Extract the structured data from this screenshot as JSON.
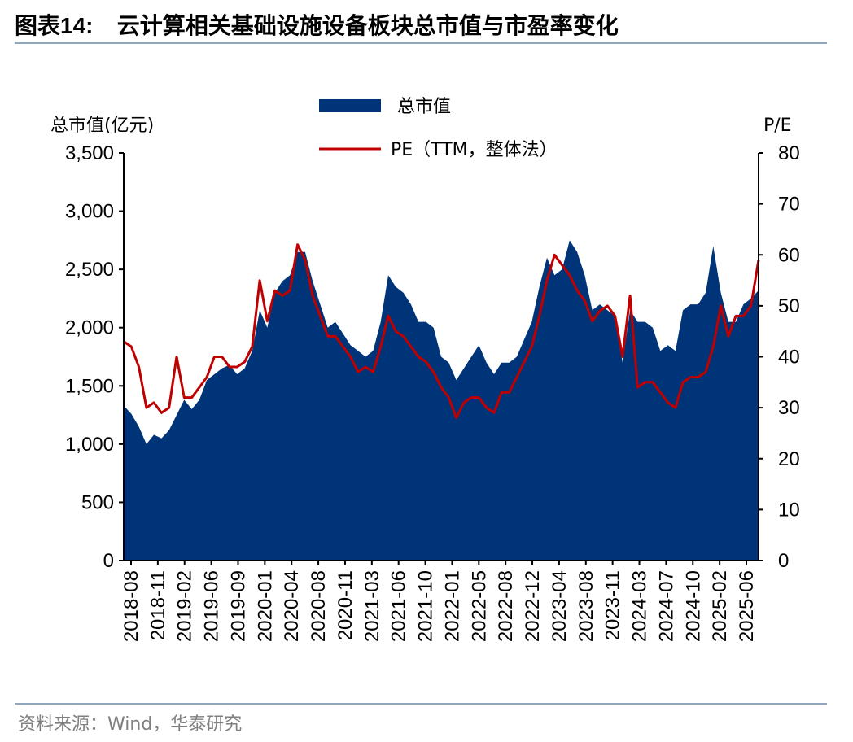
{
  "header": {
    "title_prefix": "图表",
    "title_number": "14:",
    "title_text": "云计算相关基础设施设备板块总市值与市盈率变化"
  },
  "footer": {
    "source": "资料来源：Wind，华泰研究"
  },
  "colors": {
    "area": "#003478",
    "line": "#c00000",
    "rule": "#8fa6bd"
  },
  "chart_data": {
    "type": "area+line",
    "ylabel_left": "总市值(亿元)",
    "ylabel_right": "P/E",
    "ylim_left": [
      0,
      3500
    ],
    "ylim_right": [
      0,
      80
    ],
    "yticks_left": [
      "0",
      "500",
      "1,000",
      "1,500",
      "2,000",
      "2,500",
      "3,000",
      "3,500"
    ],
    "yticks_right": [
      "0",
      "10",
      "20",
      "30",
      "40",
      "50",
      "60",
      "70",
      "80"
    ],
    "xticks": [
      "2018-08",
      "2018-11",
      "2019-02",
      "2019-06",
      "2019-09",
      "2020-01",
      "2020-04",
      "2020-08",
      "2020-11",
      "2021-03",
      "2021-06",
      "2021-10",
      "2022-01",
      "2022-05",
      "2022-08",
      "2022-12",
      "2023-04",
      "2023-08",
      "2023-11",
      "2024-03",
      "2024-07",
      "2024-10",
      "2025-02",
      "2025-06"
    ],
    "legend_placement": "top-center",
    "series": [
      {
        "name": "总市值",
        "type": "area",
        "axis": "left",
        "x": [
          "2018-08",
          "2018-09",
          "2018-10",
          "2018-11",
          "2018-12",
          "2019-01",
          "2019-02",
          "2019-03",
          "2019-04",
          "2019-05",
          "2019-06",
          "2019-07",
          "2019-08",
          "2019-09",
          "2019-10",
          "2019-11",
          "2019-12",
          "2020-01",
          "2020-02",
          "2020-03",
          "2020-04",
          "2020-05",
          "2020-06",
          "2020-07",
          "2020-08",
          "2020-09",
          "2020-10",
          "2020-11",
          "2020-12",
          "2021-01",
          "2021-02",
          "2021-03",
          "2021-04",
          "2021-05",
          "2021-06",
          "2021-07",
          "2021-08",
          "2021-09",
          "2021-10",
          "2021-11",
          "2021-12",
          "2022-01",
          "2022-02",
          "2022-03",
          "2022-04",
          "2022-05",
          "2022-06",
          "2022-07",
          "2022-08",
          "2022-09",
          "2022-10",
          "2022-11",
          "2022-12",
          "2023-01",
          "2023-02",
          "2023-03",
          "2023-04",
          "2023-05",
          "2023-06",
          "2023-07",
          "2023-08",
          "2023-09",
          "2023-10",
          "2023-11",
          "2023-12",
          "2024-01",
          "2024-02",
          "2024-03",
          "2024-04",
          "2024-05",
          "2024-06",
          "2024-07",
          "2024-08",
          "2024-09",
          "2024-10",
          "2024-11",
          "2024-12",
          "2025-01",
          "2025-02",
          "2025-03",
          "2025-04",
          "2025-05",
          "2025-06",
          "2025-07",
          "2025-08"
        ],
        "values": [
          1330,
          1260,
          1150,
          1000,
          1080,
          1050,
          1120,
          1250,
          1380,
          1300,
          1380,
          1550,
          1600,
          1650,
          1680,
          1600,
          1650,
          1800,
          2150,
          2000,
          2300,
          2400,
          2450,
          2650,
          2650,
          2400,
          2200,
          2000,
          2050,
          1950,
          1850,
          1800,
          1750,
          1800,
          2050,
          2450,
          2350,
          2300,
          2200,
          2050,
          2050,
          2000,
          1750,
          1700,
          1550,
          1650,
          1750,
          1850,
          1700,
          1600,
          1700,
          1700,
          1750,
          1900,
          2050,
          2350,
          2600,
          2450,
          2500,
          2750,
          2650,
          2450,
          2150,
          2200,
          2150,
          2100,
          1700,
          2150,
          2050,
          2050,
          2000,
          1800,
          1850,
          1800,
          2150,
          2200,
          2200,
          2300,
          2700,
          2300,
          2050,
          2050,
          2200,
          2250,
          2320
        ]
      },
      {
        "name": "PE（TTM，整体法）",
        "type": "line",
        "axis": "right",
        "x": [
          "2018-08",
          "2018-09",
          "2018-10",
          "2018-11",
          "2018-12",
          "2019-01",
          "2019-02",
          "2019-03",
          "2019-04",
          "2019-05",
          "2019-06",
          "2019-07",
          "2019-08",
          "2019-09",
          "2019-10",
          "2019-11",
          "2019-12",
          "2020-01",
          "2020-02",
          "2020-03",
          "2020-04",
          "2020-05",
          "2020-06",
          "2020-07",
          "2020-08",
          "2020-09",
          "2020-10",
          "2020-11",
          "2020-12",
          "2021-01",
          "2021-02",
          "2021-03",
          "2021-04",
          "2021-05",
          "2021-06",
          "2021-07",
          "2021-08",
          "2021-09",
          "2021-10",
          "2021-11",
          "2021-12",
          "2022-01",
          "2022-02",
          "2022-03",
          "2022-04",
          "2022-05",
          "2022-06",
          "2022-07",
          "2022-08",
          "2022-09",
          "2022-10",
          "2022-11",
          "2022-12",
          "2023-01",
          "2023-02",
          "2023-03",
          "2023-04",
          "2023-05",
          "2023-06",
          "2023-07",
          "2023-08",
          "2023-09",
          "2023-10",
          "2023-11",
          "2023-12",
          "2024-01",
          "2024-02",
          "2024-03",
          "2024-04",
          "2024-05",
          "2024-06",
          "2024-07",
          "2024-08",
          "2024-09",
          "2024-10",
          "2024-11",
          "2024-12",
          "2025-01",
          "2025-02",
          "2025-03",
          "2025-04",
          "2025-05",
          "2025-06",
          "2025-07",
          "2025-08"
        ],
        "values": [
          43,
          42,
          38,
          30,
          31,
          29,
          30,
          40,
          32,
          32,
          34,
          36,
          40,
          40,
          38,
          38,
          39,
          42,
          55,
          47,
          53,
          52,
          53,
          62,
          59,
          52,
          48,
          44,
          44,
          42,
          40,
          37,
          38,
          37,
          42,
          48,
          45,
          44,
          42,
          40,
          39,
          37,
          34,
          32,
          28,
          31,
          32,
          32,
          30,
          29,
          33,
          33,
          36,
          39,
          42,
          48,
          55,
          60,
          58,
          56,
          53,
          51,
          47,
          49,
          50,
          48,
          40,
          52,
          34,
          35,
          35,
          33,
          31,
          30,
          35,
          36,
          36,
          37,
          42,
          50,
          44,
          48,
          48,
          50,
          59
        ]
      }
    ]
  }
}
